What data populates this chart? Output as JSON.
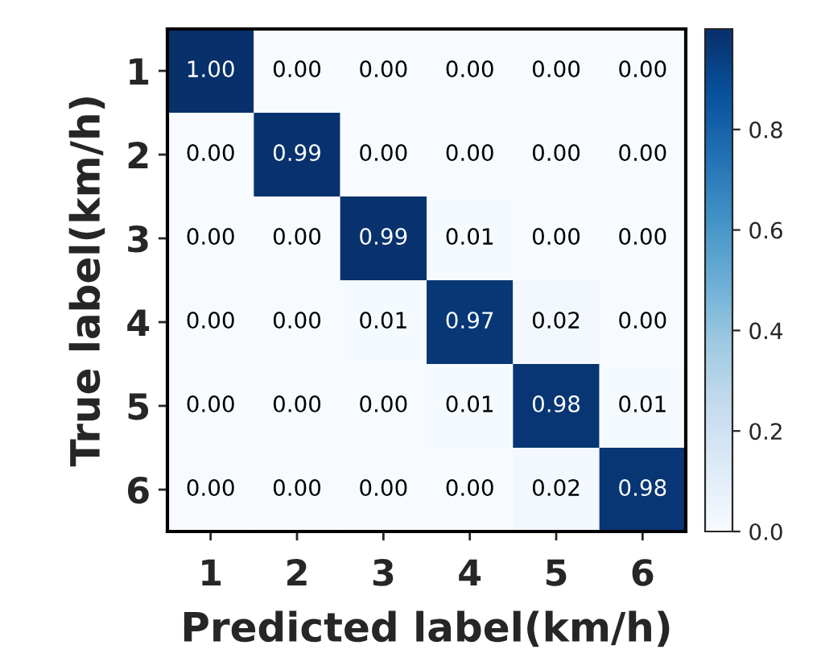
{
  "chart_data": {
    "type": "heatmap",
    "xlabel": "Predicted label(km/h)",
    "ylabel": "True label(km/h)",
    "categories": [
      "1",
      "2",
      "3",
      "4",
      "5",
      "6"
    ],
    "y_categories": [
      "1",
      "2",
      "3",
      "4",
      "5",
      "6"
    ],
    "cells": [
      [
        1.0,
        0.0,
        0.0,
        0.0,
        0.0,
        0.0
      ],
      [
        0.0,
        0.99,
        0.0,
        0.0,
        0.0,
        0.0
      ],
      [
        0.0,
        0.0,
        0.99,
        0.01,
        0.0,
        0.0
      ],
      [
        0.0,
        0.0,
        0.01,
        0.97,
        0.02,
        0.0
      ],
      [
        0.0,
        0.0,
        0.0,
        0.01,
        0.98,
        0.01
      ],
      [
        0.0,
        0.0,
        0.0,
        0.0,
        0.02,
        0.98
      ]
    ],
    "cell_labels": [
      [
        "1.00",
        "0.00",
        "0.00",
        "0.00",
        "0.00",
        "0.00"
      ],
      [
        "0.00",
        "0.99",
        "0.00",
        "0.00",
        "0.00",
        "0.00"
      ],
      [
        "0.00",
        "0.00",
        "0.99",
        "0.01",
        "0.00",
        "0.00"
      ],
      [
        "0.00",
        "0.00",
        "0.01",
        "0.97",
        "0.02",
        "0.00"
      ],
      [
        "0.00",
        "0.00",
        "0.00",
        "0.01",
        "0.98",
        "0.01"
      ],
      [
        "0.00",
        "0.00",
        "0.00",
        "0.00",
        "0.02",
        "0.98"
      ]
    ],
    "clim": [
      0,
      1.0
    ],
    "cticks": [
      {
        "value": 0,
        "label": "0.0"
      },
      0.2,
      0.4,
      0.6,
      0.8
    ]
  }
}
